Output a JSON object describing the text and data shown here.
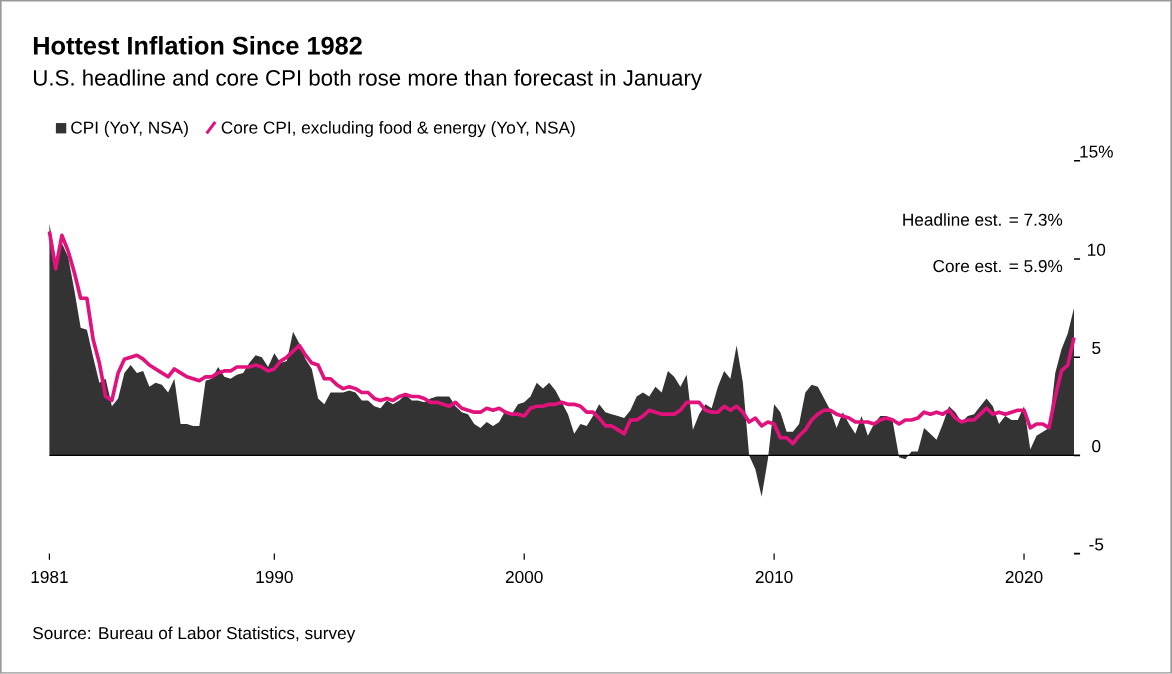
{
  "chart_data": {
    "type": "area",
    "title": "Hottest Inflation Since 1982",
    "subtitle": "U.S. headline and core CPI both rose more than forecast in January",
    "annotations": [
      "Headline est. = 7.3%",
      "Core est. = 5.9%",
      "Source: Bureau of Labor Statistics, survey"
    ],
    "xlim": [
      1981,
      2022
    ],
    "xticks": [
      1981,
      1990,
      2000,
      2010,
      2020
    ],
    "ylim": [
      -5,
      15
    ],
    "yticks": [
      -5,
      0,
      5,
      10,
      {
        "value": 15,
        "label": "15%"
      }
    ],
    "legend": "top left",
    "x": [
      1981.0,
      1981.25,
      1981.5,
      1981.75,
      1982.0,
      1982.25,
      1982.5,
      1982.75,
      1983.0,
      1983.25,
      1983.5,
      1983.75,
      1984.0,
      1984.25,
      1984.5,
      1984.75,
      1985.0,
      1985.25,
      1985.5,
      1985.75,
      1986.0,
      1986.25,
      1986.5,
      1986.75,
      1987.0,
      1987.25,
      1987.5,
      1987.75,
      1988.0,
      1988.25,
      1988.5,
      1988.75,
      1989.0,
      1989.25,
      1989.5,
      1989.75,
      1990.0,
      1990.25,
      1990.5,
      1990.75,
      1991.0,
      1991.25,
      1991.5,
      1991.75,
      1992.0,
      1992.25,
      1992.5,
      1992.75,
      1993.0,
      1993.25,
      1993.5,
      1993.75,
      1994.0,
      1994.25,
      1994.5,
      1994.75,
      1995.0,
      1995.25,
      1995.5,
      1995.75,
      1996.0,
      1996.25,
      1996.5,
      1996.75,
      1997.0,
      1997.25,
      1997.5,
      1997.75,
      1998.0,
      1998.25,
      1998.5,
      1998.75,
      1999.0,
      1999.25,
      1999.5,
      1999.75,
      2000.0,
      2000.25,
      2000.5,
      2000.75,
      2001.0,
      2001.25,
      2001.5,
      2001.75,
      2002.0,
      2002.25,
      2002.5,
      2002.75,
      2003.0,
      2003.25,
      2003.5,
      2003.75,
      2004.0,
      2004.25,
      2004.5,
      2004.75,
      2005.0,
      2005.25,
      2005.5,
      2005.75,
      2006.0,
      2006.25,
      2006.5,
      2006.75,
      2007.0,
      2007.25,
      2007.5,
      2007.75,
      2008.0,
      2008.25,
      2008.5,
      2008.75,
      2009.0,
      2009.25,
      2009.5,
      2009.75,
      2010.0,
      2010.25,
      2010.5,
      2010.75,
      2011.0,
      2011.25,
      2011.5,
      2011.75,
      2012.0,
      2012.25,
      2012.5,
      2012.75,
      2013.0,
      2013.25,
      2013.5,
      2013.75,
      2014.0,
      2014.25,
      2014.5,
      2014.75,
      2015.0,
      2015.25,
      2015.5,
      2015.75,
      2016.0,
      2016.25,
      2016.5,
      2016.75,
      2017.0,
      2017.25,
      2017.5,
      2017.75,
      2018.0,
      2018.25,
      2018.5,
      2018.75,
      2019.0,
      2019.25,
      2019.5,
      2019.75,
      2020.0,
      2020.25,
      2020.5,
      2020.75,
      2021.0,
      2021.25,
      2021.5,
      2021.75,
      2022.0
    ],
    "series": [
      {
        "name": "CPI (YoY, NSA)",
        "color": "#333333",
        "values": [
          11.8,
          10.0,
          10.8,
          10.1,
          8.4,
          6.5,
          6.4,
          5.0,
          3.7,
          3.9,
          2.5,
          2.9,
          4.2,
          4.6,
          4.2,
          4.3,
          3.5,
          3.7,
          3.6,
          3.2,
          3.9,
          1.6,
          1.6,
          1.5,
          1.5,
          3.8,
          3.9,
          4.5,
          4.0,
          3.9,
          4.1,
          4.2,
          4.7,
          5.1,
          5.0,
          4.5,
          5.2,
          4.7,
          4.8,
          6.3,
          5.7,
          4.9,
          4.4,
          2.9,
          2.6,
          3.2,
          3.2,
          3.2,
          3.3,
          3.2,
          2.8,
          2.8,
          2.5,
          2.4,
          2.8,
          2.6,
          2.8,
          3.1,
          2.8,
          2.8,
          2.7,
          2.9,
          3.0,
          3.0,
          3.0,
          2.5,
          2.2,
          2.1,
          1.6,
          1.4,
          1.7,
          1.5,
          1.7,
          2.3,
          2.1,
          2.6,
          2.7,
          3.0,
          3.7,
          3.4,
          3.7,
          3.3,
          2.7,
          2.1,
          1.1,
          1.6,
          1.5,
          2.0,
          2.6,
          2.2,
          2.1,
          2.0,
          1.9,
          2.3,
          3.0,
          3.2,
          3.0,
          3.5,
          3.2,
          4.3,
          4.0,
          3.5,
          4.1,
          1.3,
          2.1,
          2.6,
          2.4,
          3.5,
          4.3,
          3.9,
          5.6,
          3.7,
          0.0,
          -0.7,
          -2.1,
          -0.2,
          2.6,
          2.2,
          1.2,
          1.2,
          1.6,
          3.2,
          3.6,
          3.5,
          2.9,
          2.3,
          1.4,
          2.2,
          1.6,
          1.1,
          2.0,
          1.0,
          1.6,
          2.0,
          2.0,
          1.7,
          -0.1,
          -0.2,
          0.2,
          0.2,
          1.4,
          1.1,
          0.8,
          1.6,
          2.5,
          2.2,
          1.7,
          2.0,
          2.1,
          2.5,
          2.9,
          2.5,
          1.6,
          2.0,
          1.8,
          1.8,
          2.5,
          0.3,
          1.0,
          1.2,
          1.4,
          4.2,
          5.4,
          6.2,
          7.5
        ]
      },
      {
        "name": "Core CPI, excluding food & energy (YoY, NSA)",
        "type": "line",
        "color": "#e2127d",
        "values": [
          11.4,
          9.5,
          11.2,
          10.4,
          9.3,
          8.0,
          8.0,
          5.9,
          4.7,
          3.0,
          2.8,
          4.2,
          4.9,
          5.0,
          5.1,
          4.9,
          4.6,
          4.4,
          4.2,
          4.0,
          4.4,
          4.2,
          4.0,
          3.9,
          3.8,
          4.0,
          4.0,
          4.2,
          4.3,
          4.3,
          4.5,
          4.5,
          4.5,
          4.6,
          4.5,
          4.3,
          4.4,
          4.8,
          5.0,
          5.3,
          5.6,
          5.1,
          4.7,
          4.6,
          3.9,
          3.9,
          3.6,
          3.4,
          3.5,
          3.4,
          3.2,
          3.2,
          2.9,
          2.8,
          2.9,
          2.8,
          3.0,
          3.1,
          3.0,
          3.0,
          2.9,
          2.7,
          2.7,
          2.6,
          2.5,
          2.7,
          2.4,
          2.3,
          2.2,
          2.2,
          2.4,
          2.3,
          2.4,
          2.2,
          2.1,
          2.1,
          2.0,
          2.4,
          2.5,
          2.5,
          2.6,
          2.6,
          2.7,
          2.6,
          2.6,
          2.5,
          2.2,
          2.2,
          1.9,
          1.5,
          1.5,
          1.3,
          1.1,
          1.8,
          1.8,
          2.0,
          2.3,
          2.2,
          2.1,
          2.1,
          2.1,
          2.3,
          2.7,
          2.7,
          2.7,
          2.3,
          2.2,
          2.2,
          2.5,
          2.3,
          2.5,
          2.2,
          1.7,
          1.9,
          1.5,
          1.7,
          1.6,
          0.9,
          0.9,
          0.6,
          1.0,
          1.3,
          1.8,
          2.1,
          2.3,
          2.3,
          2.1,
          2.0,
          1.9,
          1.7,
          1.7,
          1.7,
          1.6,
          1.8,
          1.9,
          1.8,
          1.6,
          1.8,
          1.8,
          1.9,
          2.2,
          2.1,
          2.2,
          2.1,
          2.3,
          1.9,
          1.7,
          1.8,
          1.8,
          2.1,
          2.4,
          2.1,
          2.2,
          2.1,
          2.2,
          2.3,
          2.3,
          1.4,
          1.6,
          1.6,
          1.4,
          3.0,
          4.3,
          4.6,
          6.0
        ]
      }
    ]
  }
}
